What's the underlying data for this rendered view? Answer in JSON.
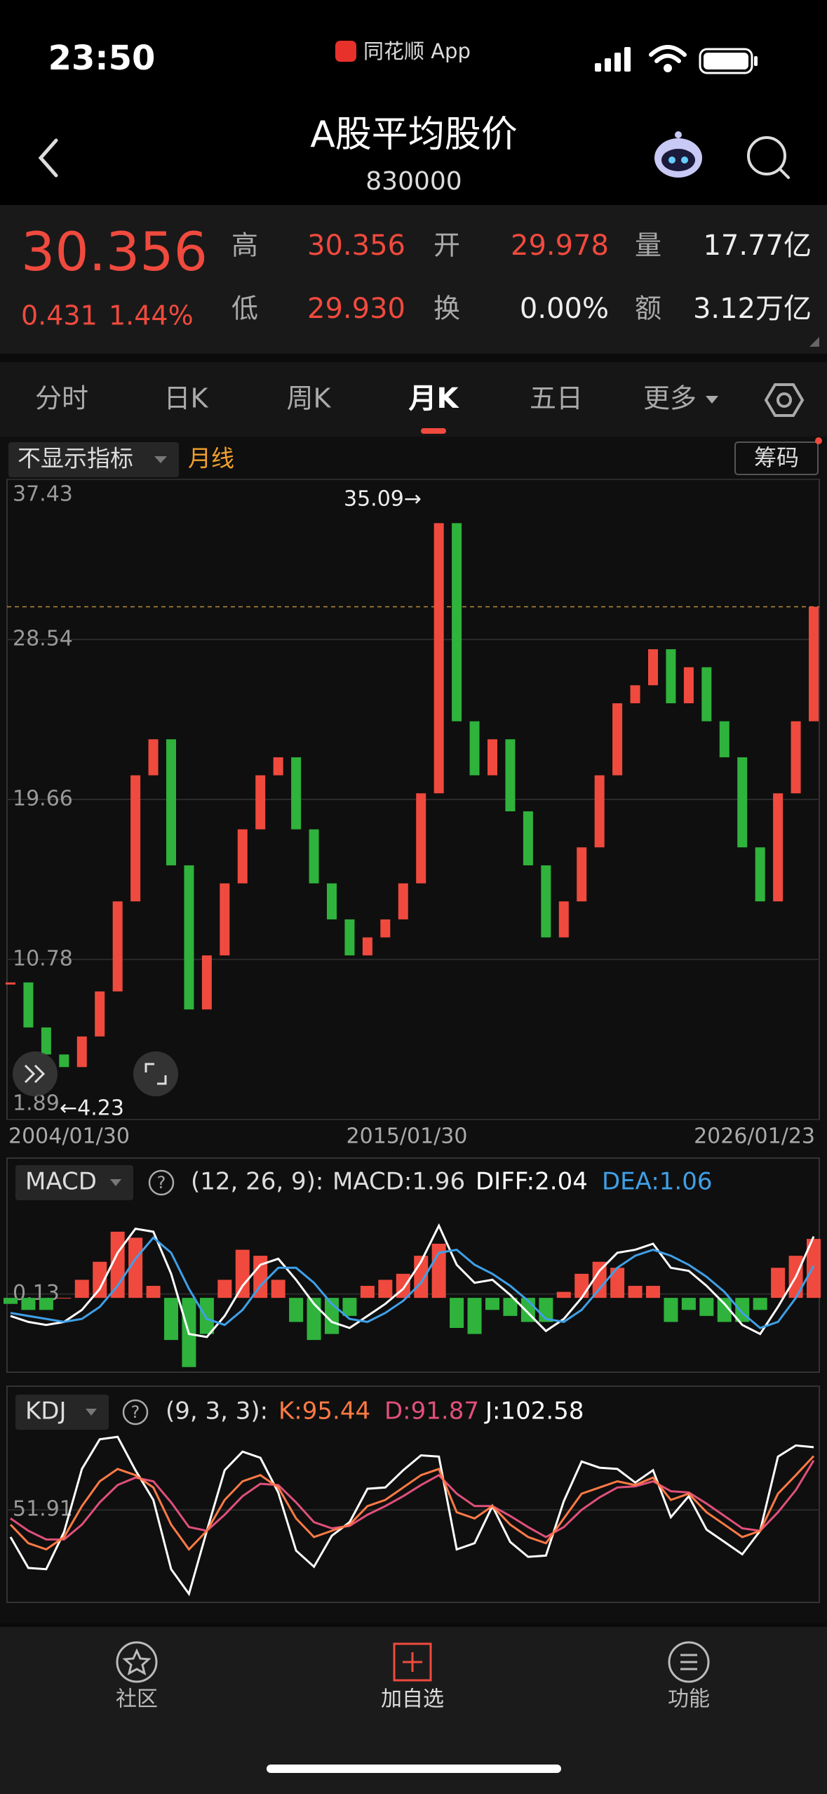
{
  "status_bar": {
    "time": "23:50",
    "app": "同花顺 App"
  },
  "header": {
    "title": "A股平均股价",
    "code": "830000"
  },
  "quote": {
    "price": "30.356",
    "change": "0.431",
    "change_pct": "1.44%",
    "fields": [
      {
        "label": "高",
        "value": "30.356"
      },
      {
        "label": "开",
        "value": "29.978"
      },
      {
        "label": "量",
        "value": "17.77亿"
      },
      {
        "label": "低",
        "value": "29.930"
      },
      {
        "label": "换",
        "value": "0.00%"
      },
      {
        "label": "额",
        "value": "3.12万亿"
      }
    ]
  },
  "tabs": [
    "分时",
    "日K",
    "周K",
    "月K",
    "五日",
    "更多"
  ],
  "toolbar": {
    "indicator": "不显示指标",
    "period": "月线",
    "chip": "筹码"
  },
  "help_icon": "?",
  "chart_data": [
    {
      "type": "candlestick",
      "values": [
        9.5,
        7.0,
        5.5,
        4.8,
        6.5,
        9.0,
        14,
        21,
        23,
        16,
        8,
        11,
        15,
        18,
        21,
        22,
        18,
        15,
        13,
        11,
        12,
        13,
        15,
        20,
        35,
        24,
        21,
        23,
        19,
        16,
        12,
        14,
        17,
        21,
        25,
        26,
        28,
        25,
        27,
        24,
        22,
        17,
        14,
        20,
        24,
        30.36
      ],
      "up_color": "#f04a3e",
      "down_color": "#2fb33c",
      "ylim": [
        1.89,
        37.43
      ],
      "yticks": [
        37.43,
        28.54,
        19.66,
        10.78,
        1.89
      ],
      "x_labels": [
        "2004/01/30",
        "2015/01/30",
        "2026/01/23"
      ],
      "annotations": [
        "35.09→",
        "←4.23"
      ]
    },
    {
      "type": "macd",
      "title": "MACD",
      "params": "(12, 26, 9):",
      "label": "MACD:1.96",
      "values": [
        -0.2,
        -0.4,
        -0.4,
        0,
        0.6,
        1.2,
        2.2,
        2.0,
        0.4,
        -1.4,
        -2.3,
        -1.2,
        0.6,
        1.6,
        1.4,
        0.6,
        -0.8,
        -1.4,
        -1.2,
        -0.6,
        0.4,
        0.6,
        0.8,
        1.4,
        1.8,
        -1.0,
        -1.2,
        -0.4,
        -0.6,
        -0.8,
        -0.8,
        0.2,
        0.8,
        1.2,
        1.0,
        0.4,
        0.4,
        -0.8,
        -0.4,
        -0.6,
        -0.8,
        -0.8,
        -0.4,
        1.0,
        1.4,
        1.96
      ],
      "up_color": "#f04a3e",
      "down_color": "#2fb33c",
      "series": [
        {
          "label": "DIFF:2.04",
          "color": "#ffffff",
          "values": [
            -0.6,
            -0.8,
            -0.9,
            -0.8,
            -0.4,
            0.3,
            1.5,
            2.3,
            2.2,
            0.8,
            -1.2,
            -1.3,
            -0.6,
            0.4,
            1.1,
            1.3,
            0.6,
            -0.2,
            -0.8,
            -1.0,
            -0.6,
            -0.2,
            0.3,
            1.2,
            2.4,
            1.1,
            0.5,
            0.6,
            0.1,
            -0.5,
            -1.1,
            -0.7,
            0.0,
            0.9,
            1.5,
            1.6,
            1.8,
            1.0,
            0.9,
            0.4,
            -0.2,
            -0.9,
            -1.2,
            -0.3,
            0.7,
            2.04
          ]
        },
        {
          "label": "DEA:1.06",
          "color": "#3fa0e8",
          "values": [
            -0.5,
            -0.6,
            -0.7,
            -0.8,
            -0.7,
            -0.3,
            0.4,
            1.3,
            2.0,
            1.5,
            0.3,
            -0.7,
            -0.9,
            -0.4,
            0.4,
            1.0,
            1.0,
            0.5,
            -0.2,
            -0.7,
            -0.8,
            -0.5,
            -0.1,
            0.5,
            1.5,
            1.6,
            1.1,
            0.8,
            0.4,
            -0.1,
            -0.7,
            -0.8,
            -0.4,
            0.3,
            1.0,
            1.4,
            1.6,
            1.4,
            1.1,
            0.7,
            0.2,
            -0.5,
            -1.0,
            -0.8,
            0.0,
            1.06
          ]
        }
      ],
      "ylim": [
        -2.4,
        3.2
      ],
      "yticks": [
        0.13
      ]
    },
    {
      "type": "kdj",
      "title": "KDJ",
      "params": "(9, 3, 3):",
      "series": [
        {
          "label": "K:95.44",
          "color": "#ff7a45",
          "values": [
            40,
            25,
            20,
            30,
            55,
            75,
            85,
            80,
            70,
            40,
            20,
            35,
            60,
            75,
            80,
            70,
            45,
            30,
            35,
            40,
            55,
            60,
            70,
            80,
            85,
            50,
            45,
            55,
            40,
            30,
            25,
            45,
            65,
            70,
            75,
            72,
            78,
            60,
            65,
            50,
            40,
            30,
            35,
            65,
            80,
            95.44
          ]
        },
        {
          "label": "D:91.87",
          "color": "#e0507a",
          "values": [
            45,
            35,
            28,
            28,
            40,
            58,
            72,
            78,
            75,
            58,
            38,
            35,
            48,
            63,
            73,
            72,
            58,
            42,
            37,
            39,
            48,
            55,
            63,
            72,
            80,
            65,
            55,
            55,
            47,
            38,
            30,
            38,
            52,
            62,
            70,
            71,
            75,
            67,
            66,
            57,
            47,
            37,
            35,
            50,
            68,
            91.87
          ]
        },
        {
          "label": "J:102.58",
          "color": "#ffffff",
          "values": [
            30,
            5,
            4,
            34,
            85,
            109,
            111,
            84,
            60,
            4,
            -16,
            35,
            84,
            99,
            94,
            66,
            19,
            6,
            31,
            42,
            69,
            70,
            84,
            96,
            95,
            20,
            25,
            55,
            26,
            14,
            15,
            59,
            91,
            86,
            85,
            74,
            84,
            46,
            63,
            36,
            26,
            16,
            35,
            95,
            104,
            102.58
          ]
        }
      ],
      "ylim": [
        -20,
        115
      ],
      "yticks": [
        51.91
      ]
    }
  ],
  "nav": [
    "社区",
    "加自选",
    "功能"
  ]
}
